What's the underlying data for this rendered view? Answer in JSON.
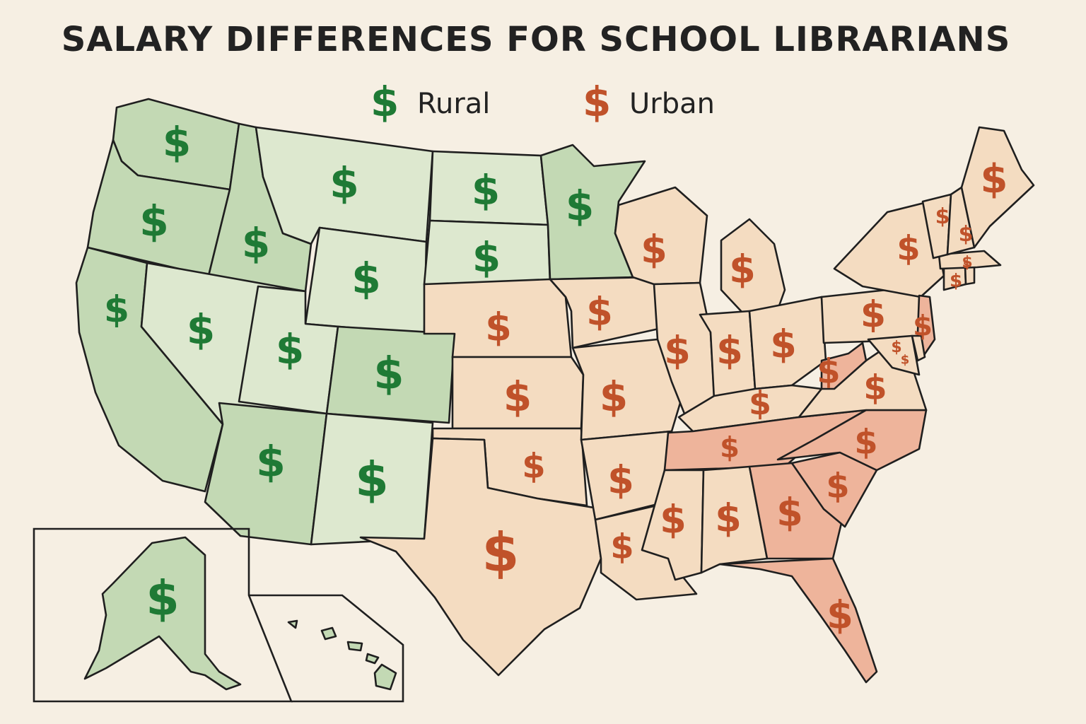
{
  "title": "SALARY DIFFERENCES FOR SCHOOL LIBRARIANS",
  "legend": {
    "items": [
      {
        "symbol": "$",
        "label": "Rural",
        "color": "#1f7a35"
      },
      {
        "symbol": "$",
        "label": "Urban",
        "color": "#c0522a"
      }
    ]
  },
  "colors": {
    "rural_dark_fill": "#c3d9b4",
    "rural_light_fill": "#dde8cf",
    "urban_light_fill": "#f4dcc1",
    "urban_dark_fill": "#eeb49b",
    "rural_symbol": "#1f7a35",
    "urban_symbol": "#c0522a"
  },
  "map": {
    "symbol": "$",
    "states": [
      {
        "id": "WA",
        "category": "rural",
        "shade": "dark"
      },
      {
        "id": "OR",
        "category": "rural",
        "shade": "dark"
      },
      {
        "id": "CA",
        "category": "rural",
        "shade": "dark"
      },
      {
        "id": "ID",
        "category": "rural",
        "shade": "dark"
      },
      {
        "id": "NV",
        "category": "rural",
        "shade": "light"
      },
      {
        "id": "MT",
        "category": "rural",
        "shade": "light"
      },
      {
        "id": "WY",
        "category": "rural",
        "shade": "light"
      },
      {
        "id": "UT",
        "category": "rural",
        "shade": "light"
      },
      {
        "id": "CO",
        "category": "rural",
        "shade": "dark"
      },
      {
        "id": "AZ",
        "category": "rural",
        "shade": "dark"
      },
      {
        "id": "NM",
        "category": "rural",
        "shade": "light"
      },
      {
        "id": "ND",
        "category": "rural",
        "shade": "light"
      },
      {
        "id": "SD",
        "category": "rural",
        "shade": "light"
      },
      {
        "id": "MN",
        "category": "rural",
        "shade": "dark"
      },
      {
        "id": "AK",
        "category": "rural",
        "shade": "dark"
      },
      {
        "id": "HI",
        "category": "rural",
        "shade": "dark"
      },
      {
        "id": "NE",
        "category": "urban",
        "shade": "light"
      },
      {
        "id": "KS",
        "category": "urban",
        "shade": "light"
      },
      {
        "id": "OK",
        "category": "urban",
        "shade": "light"
      },
      {
        "id": "TX",
        "category": "urban",
        "shade": "light"
      },
      {
        "id": "IA",
        "category": "urban",
        "shade": "light"
      },
      {
        "id": "MO",
        "category": "urban",
        "shade": "light"
      },
      {
        "id": "AR",
        "category": "urban",
        "shade": "light"
      },
      {
        "id": "LA",
        "category": "urban",
        "shade": "light"
      },
      {
        "id": "WI",
        "category": "urban",
        "shade": "light"
      },
      {
        "id": "IL",
        "category": "urban",
        "shade": "light"
      },
      {
        "id": "MI",
        "category": "urban",
        "shade": "light"
      },
      {
        "id": "IN",
        "category": "urban",
        "shade": "light"
      },
      {
        "id": "OH",
        "category": "urban",
        "shade": "light"
      },
      {
        "id": "KY",
        "category": "urban",
        "shade": "light"
      },
      {
        "id": "TN",
        "category": "urban",
        "shade": "dark"
      },
      {
        "id": "MS",
        "category": "urban",
        "shade": "light"
      },
      {
        "id": "AL",
        "category": "urban",
        "shade": "light"
      },
      {
        "id": "GA",
        "category": "urban",
        "shade": "dark"
      },
      {
        "id": "FL",
        "category": "urban",
        "shade": "dark"
      },
      {
        "id": "SC",
        "category": "urban",
        "shade": "dark"
      },
      {
        "id": "NC",
        "category": "urban",
        "shade": "dark"
      },
      {
        "id": "VA",
        "category": "urban",
        "shade": "light"
      },
      {
        "id": "WV",
        "category": "urban",
        "shade": "dark"
      },
      {
        "id": "PA",
        "category": "urban",
        "shade": "light"
      },
      {
        "id": "NY",
        "category": "urban",
        "shade": "light"
      },
      {
        "id": "NJ",
        "category": "urban",
        "shade": "dark"
      },
      {
        "id": "MD",
        "category": "urban",
        "shade": "light"
      },
      {
        "id": "DE",
        "category": "urban",
        "shade": "light"
      },
      {
        "id": "CT",
        "category": "urban",
        "shade": "light"
      },
      {
        "id": "RI",
        "category": "urban",
        "shade": "light"
      },
      {
        "id": "MA",
        "category": "urban",
        "shade": "light"
      },
      {
        "id": "VT",
        "category": "urban",
        "shade": "light"
      },
      {
        "id": "NH",
        "category": "urban",
        "shade": "light"
      },
      {
        "id": "ME",
        "category": "urban",
        "shade": "light"
      }
    ]
  }
}
